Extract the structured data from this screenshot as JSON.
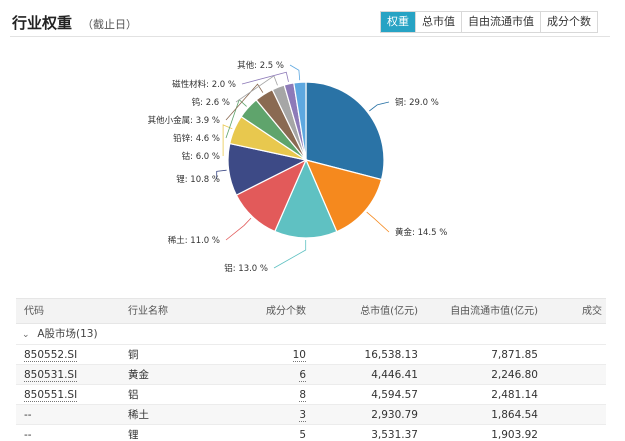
{
  "header": {
    "title": "行业权重",
    "subtitle": "（截止日）",
    "tabs": [
      {
        "label": "权重",
        "active": true
      },
      {
        "label": "总市值",
        "active": false
      },
      {
        "label": "自由流通市值",
        "active": false
      },
      {
        "label": "成分个数",
        "active": false
      }
    ]
  },
  "chart_data": {
    "type": "pie",
    "slices": [
      {
        "label": "铜: 29.0 %",
        "value": 29.0,
        "color": "#2a73a6"
      },
      {
        "label": "黄金: 14.5 %",
        "value": 14.5,
        "color": "#f5891e"
      },
      {
        "label": "铝: 13.0 %",
        "value": 13.0,
        "color": "#5fc1c2"
      },
      {
        "label": "稀土: 11.0 %",
        "value": 11.0,
        "color": "#e25a5a"
      },
      {
        "label": "锂: 10.8 %",
        "value": 10.8,
        "color": "#3d4a86"
      },
      {
        "label": "钴: 6.0 %",
        "value": 6.0,
        "color": "#e8c84e"
      },
      {
        "label": "铅锌: 4.6 %",
        "value": 4.6,
        "color": "#5fa46c"
      },
      {
        "label": "其他小金属: 3.9 %",
        "value": 3.9,
        "color": "#8a6a52"
      },
      {
        "label": "钨: 2.6 %",
        "value": 2.6,
        "color": "#a6a6a6"
      },
      {
        "label": "磁性材料: 2.0 %",
        "value": 2.0,
        "color": "#8d7ab8"
      },
      {
        "label": "其他: 2.5 %",
        "value": 2.5,
        "color": "#5ea8e0"
      }
    ]
  },
  "table": {
    "columns": [
      "代码",
      "行业名称",
      "成分个数",
      "总市值(亿元)",
      "自由流通市值(亿元)",
      "成交"
    ],
    "group_label": "A股市场(13)",
    "rows": [
      {
        "code": "850552.SI",
        "name": "铜",
        "count": "10",
        "total_cap": "16,538.13",
        "free_cap": "7,871.85"
      },
      {
        "code": "850531.SI",
        "name": "黄金",
        "count": "6",
        "total_cap": "4,446.41",
        "free_cap": "2,246.80"
      },
      {
        "code": "850551.SI",
        "name": "铝",
        "count": "8",
        "total_cap": "4,594.57",
        "free_cap": "2,481.14"
      },
      {
        "code": "--",
        "name": "稀土",
        "count": "3",
        "total_cap": "2,930.79",
        "free_cap": "1,864.54"
      },
      {
        "code": "--",
        "name": "锂",
        "count": "5",
        "total_cap": "3,531.37",
        "free_cap": "1,903.92"
      }
    ]
  }
}
